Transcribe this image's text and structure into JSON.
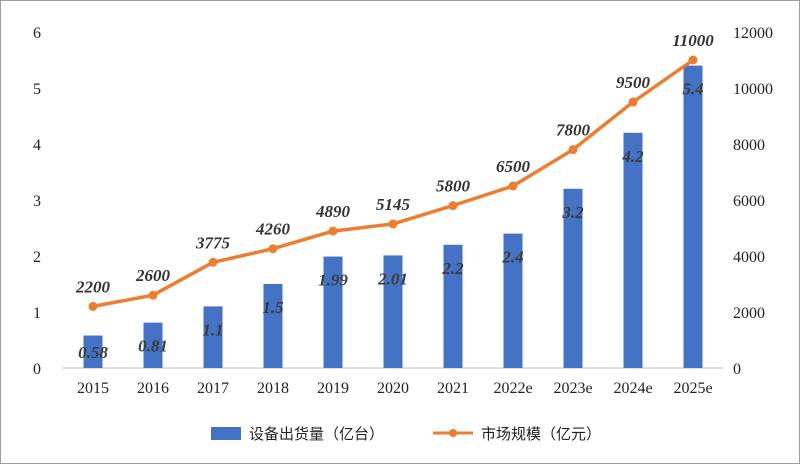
{
  "chart_data": {
    "type": "bar",
    "categories": [
      "2015",
      "2016",
      "2017",
      "2018",
      "2019",
      "2020",
      "2021",
      "2022e",
      "2023e",
      "2024e",
      "2025e"
    ],
    "series": [
      {
        "name": "设备出货量（亿台）",
        "type": "bar",
        "axis": "left",
        "color": "#4472C4",
        "values": [
          0.58,
          0.81,
          1.1,
          1.5,
          1.99,
          2.01,
          2.2,
          2.4,
          3.2,
          4.2,
          5.4
        ],
        "labels": [
          "0.58",
          "0.81",
          "1.1",
          "1.5",
          "1.99",
          "2.01",
          "2.2",
          "2.4",
          "3.2",
          "4.2",
          "5.4"
        ]
      },
      {
        "name": "市场规模（亿元）",
        "type": "line",
        "axis": "right",
        "color": "#ED7D31",
        "values": [
          2200,
          2600,
          3775,
          4260,
          4890,
          5145,
          5800,
          6500,
          7800,
          9500,
          11000
        ],
        "labels": [
          "2200",
          "2600",
          "3775",
          "4260",
          "4890",
          "5145",
          "5800",
          "6500",
          "7800",
          "9500",
          "11000"
        ]
      }
    ],
    "y_left": {
      "ylim": [
        0,
        6
      ],
      "ticks": [
        "0",
        "1",
        "2",
        "3",
        "4",
        "5",
        "6"
      ]
    },
    "y_right": {
      "ylim": [
        0,
        12000
      ],
      "ticks": [
        "0",
        "2000",
        "4000",
        "6000",
        "8000",
        "10000",
        "12000"
      ]
    },
    "grid": false,
    "legend": {
      "position": "bottom",
      "items": [
        {
          "label": "设备出货量（亿台）",
          "marker": "bar",
          "color": "#4472C4"
        },
        {
          "label": "市场规模（亿元）",
          "marker": "line",
          "color": "#ED7D31"
        }
      ]
    }
  }
}
